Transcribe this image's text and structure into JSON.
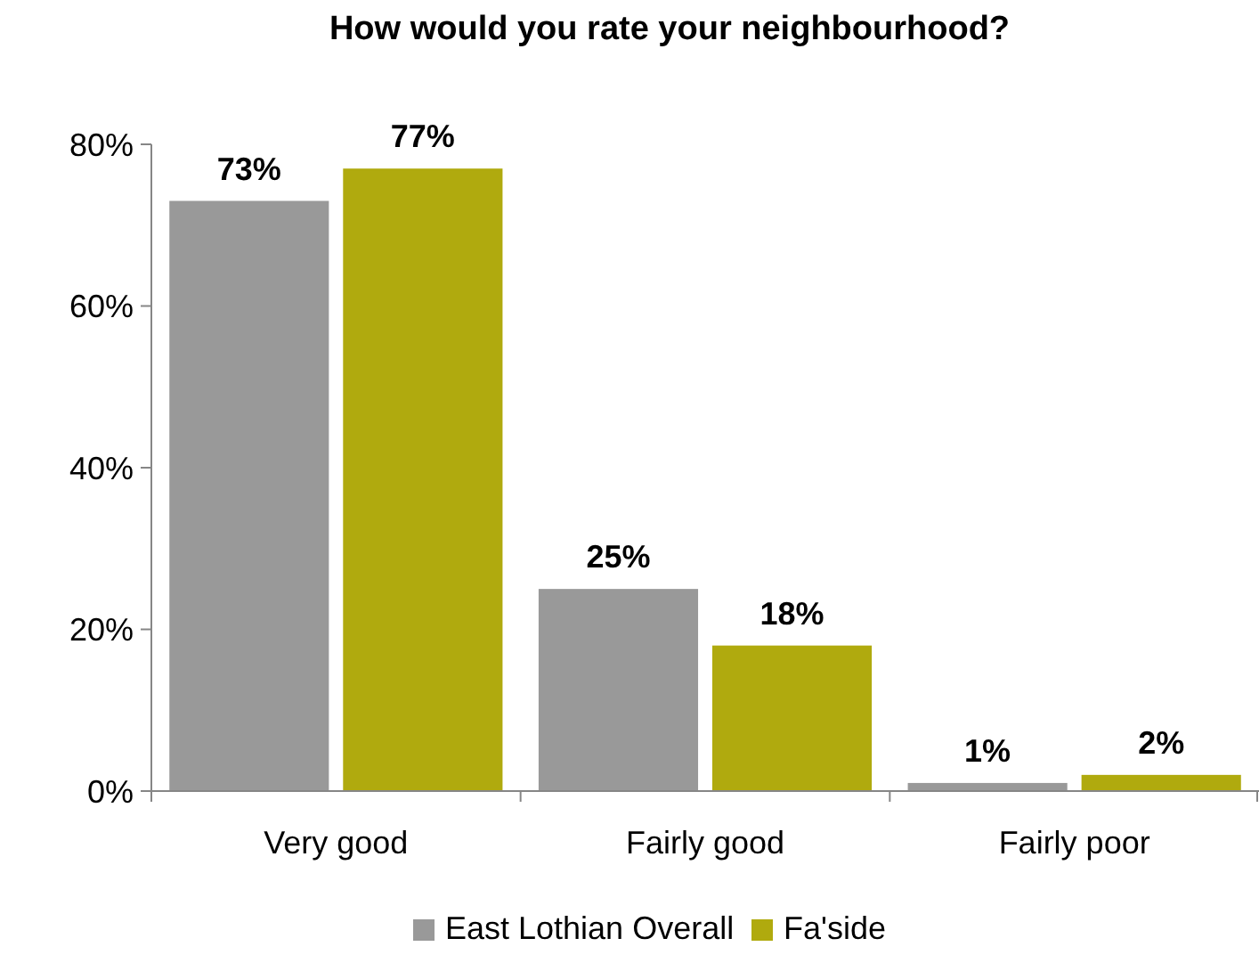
{
  "chart_data": {
    "type": "bar",
    "title": "How would you rate your neighbourhood?",
    "categories": [
      "Very good",
      "Fairly good",
      "Fairly poor"
    ],
    "series": [
      {
        "name": "East Lothian Overall",
        "color": "#999999",
        "values": [
          73,
          25,
          1
        ],
        "value_labels": [
          "73%",
          "25%",
          "1%"
        ]
      },
      {
        "name": "Fa'side",
        "color": "#b0aa0e",
        "values": [
          77,
          18,
          2
        ],
        "value_labels": [
          "77%",
          "18%",
          "2%"
        ]
      }
    ],
    "ylim": [
      0,
      80
    ],
    "yticks": [
      {
        "value": 0,
        "label": "0%"
      },
      {
        "value": 20,
        "label": "20%"
      },
      {
        "value": 40,
        "label": "40%"
      },
      {
        "value": 60,
        "label": "60%"
      },
      {
        "value": 80,
        "label": "80%"
      }
    ],
    "grid": false,
    "legend": "bottom"
  }
}
